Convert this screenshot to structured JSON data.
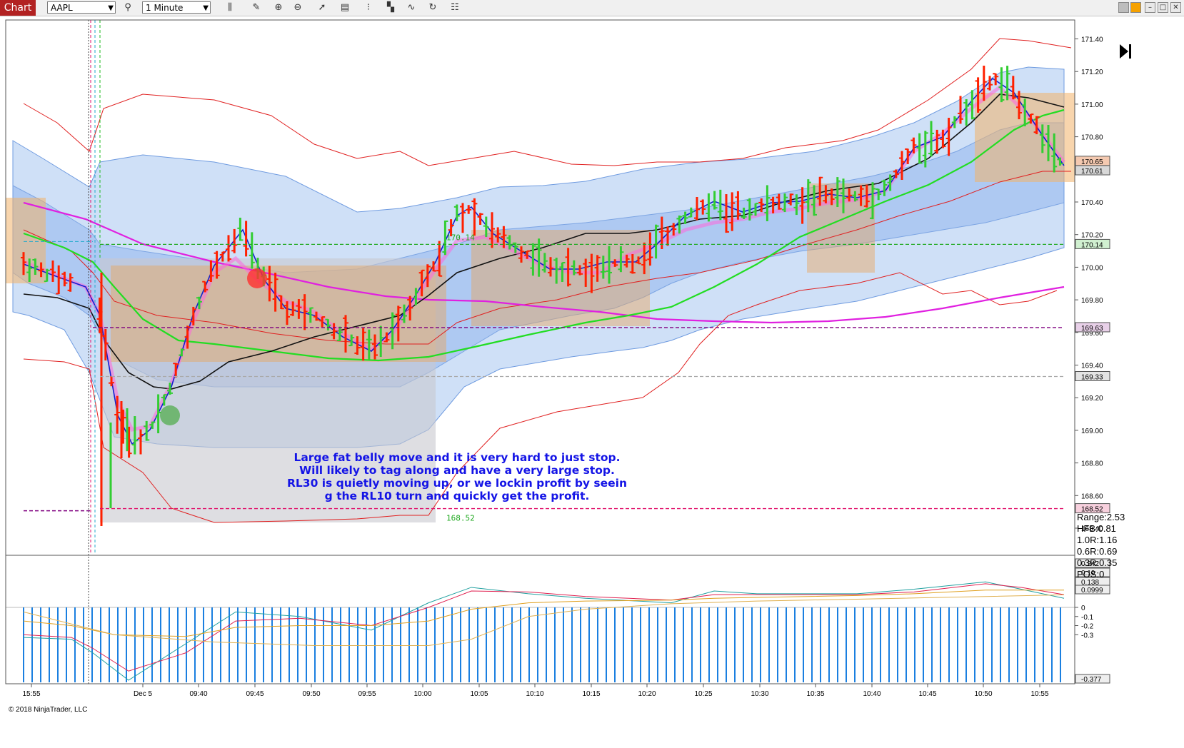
{
  "toolbar": {
    "tab_label": "Chart",
    "instrument": "AAPL",
    "interval": "1 Minute",
    "tools": [
      "search-icon",
      "bars-icon",
      "pencil-icon",
      "zoom-in-icon",
      "zoom-out-icon",
      "pointer-icon",
      "properties-icon",
      "strategies-icon",
      "indicators-icon",
      "drawing-tools-icon",
      "reload-icon",
      "templates-icon"
    ],
    "window_buttons": [
      "restore",
      "minimize",
      "maximize",
      "close"
    ]
  },
  "price_axis": {
    "ticks": [
      "171.40",
      "171.20",
      "171.00",
      "170.80",
      "170.60",
      "170.40",
      "170.20",
      "170.00",
      "169.80",
      "169.60",
      "169.40",
      "169.20",
      "169.00",
      "168.80",
      "168.60",
      "168.40"
    ],
    "markers": [
      "170.65",
      "170.61",
      "170.14",
      "169.63",
      "169.33",
      "168.52"
    ]
  },
  "osc_axis": {
    "ticks": [
      "0",
      "-0.1",
      "-0.2",
      "-0.3"
    ],
    "markers": [
      "0.242",
      "0.19",
      "0.138",
      "0.0999",
      "-0.377"
    ]
  },
  "time_axis": [
    "15:55",
    "Dec 5",
    "09:40",
    "09:45",
    "09:50",
    "09:55",
    "10:00",
    "10:05",
    "10:10",
    "10:15",
    "10:20",
    "10:25",
    "10:30",
    "10:35",
    "10:40",
    "10:45",
    "10:50",
    "10:55"
  ],
  "chart_labels": {
    "upper": "170.14",
    "lower": "168.52"
  },
  "annotation": [
    "Large fat belly move and it is very hard to just stop.",
    "Will likely to tag along and have a very large stop.",
    "RL30 is quietly moving up, or we lockin profit by seein",
    "g the RL10 turn and quickly get the profit."
  ],
  "stats": [
    "Range:2.53",
    "HFB:0.81",
    "1.0R:1.16",
    "0.6R:0.69",
    "0.3R:0.35",
    "POS:0"
  ],
  "copyright": "© 2018 NinjaTrader, LLC",
  "colors": {
    "up": "#32cd32",
    "down": "#ff2000",
    "accent": "#b22222"
  }
}
